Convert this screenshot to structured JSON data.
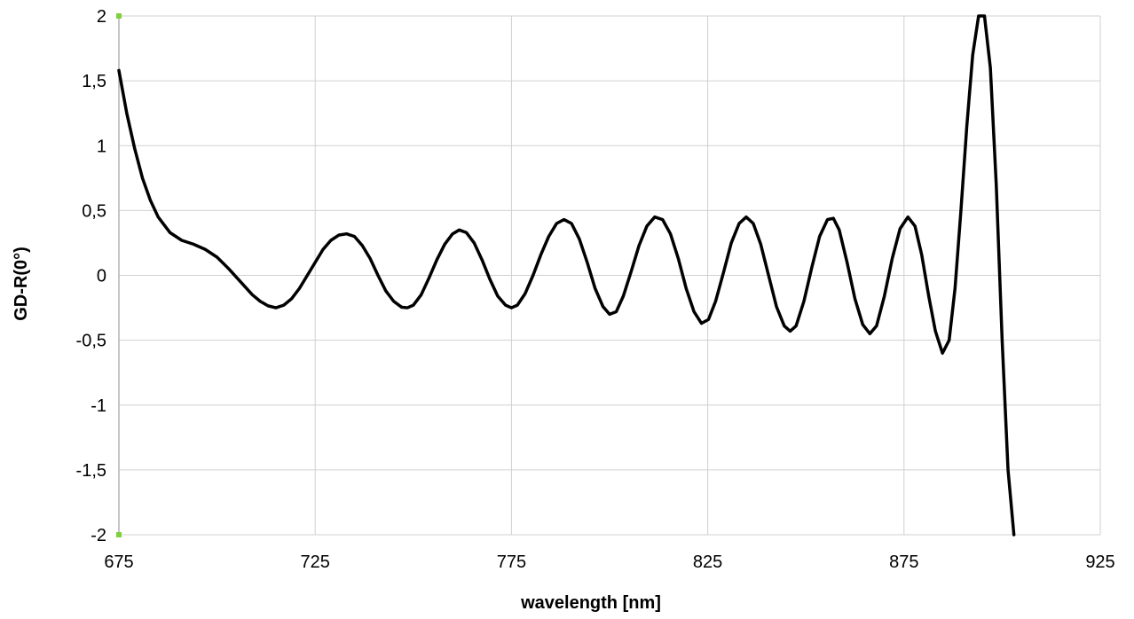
{
  "chart_data": {
    "type": "line",
    "xlabel": "wavelength [nm]",
    "ylabel": "GD-R(0°)",
    "xlim": [
      675,
      925
    ],
    "ylim": [
      -2,
      2
    ],
    "x_ticks": [
      675,
      725,
      775,
      825,
      875,
      925
    ],
    "x_tick_labels": [
      "675",
      "725",
      "775",
      "825",
      "875",
      "925"
    ],
    "y_ticks": [
      2,
      1.5,
      1,
      0.5,
      0,
      -0.5,
      -1,
      -1.5,
      -2
    ],
    "y_tick_labels": [
      "2",
      "1,5",
      "1",
      "0,5",
      "0",
      "-0,5",
      "-1",
      "-1,5",
      "-2"
    ],
    "grid": true,
    "legend": "none",
    "colors": {
      "line": "#000000",
      "grid": "#d0d0d0",
      "axis": "#b3b3b3",
      "marker": "#7fd13b"
    },
    "series": [
      {
        "values": [
          [
            675.0,
            1.58
          ],
          [
            677.0,
            1.25
          ],
          [
            679.0,
            0.98
          ],
          [
            681.0,
            0.75
          ],
          [
            683.0,
            0.58
          ],
          [
            685.0,
            0.45
          ],
          [
            688.0,
            0.33
          ],
          [
            691.0,
            0.27
          ],
          [
            694.0,
            0.24
          ],
          [
            697.0,
            0.2
          ],
          [
            700.0,
            0.14
          ],
          [
            703.0,
            0.05
          ],
          [
            706.0,
            -0.05
          ],
          [
            709.0,
            -0.15
          ],
          [
            711.0,
            -0.2
          ],
          [
            713.0,
            -0.235
          ],
          [
            715.0,
            -0.25
          ],
          [
            717.0,
            -0.23
          ],
          [
            719.0,
            -0.18
          ],
          [
            721.0,
            -0.1
          ],
          [
            723.0,
            0.0
          ],
          [
            725.0,
            0.1
          ],
          [
            727.0,
            0.2
          ],
          [
            729.0,
            0.27
          ],
          [
            731.0,
            0.31
          ],
          [
            733.0,
            0.32
          ],
          [
            735.0,
            0.3
          ],
          [
            737.0,
            0.23
          ],
          [
            739.0,
            0.13
          ],
          [
            741.0,
            0.0
          ],
          [
            743.0,
            -0.12
          ],
          [
            745.0,
            -0.2
          ],
          [
            747.0,
            -0.245
          ],
          [
            748.5,
            -0.25
          ],
          [
            750.0,
            -0.23
          ],
          [
            752.0,
            -0.15
          ],
          [
            754.0,
            -0.02
          ],
          [
            756.0,
            0.12
          ],
          [
            758.0,
            0.24
          ],
          [
            760.0,
            0.32
          ],
          [
            761.7,
            0.35
          ],
          [
            763.5,
            0.33
          ],
          [
            765.5,
            0.25
          ],
          [
            767.5,
            0.12
          ],
          [
            769.5,
            -0.03
          ],
          [
            771.5,
            -0.16
          ],
          [
            773.5,
            -0.23
          ],
          [
            775.0,
            -0.25
          ],
          [
            776.5,
            -0.23
          ],
          [
            778.5,
            -0.14
          ],
          [
            780.5,
            0.0
          ],
          [
            782.5,
            0.16
          ],
          [
            784.5,
            0.3
          ],
          [
            786.5,
            0.4
          ],
          [
            788.4,
            0.43
          ],
          [
            790.3,
            0.4
          ],
          [
            792.3,
            0.28
          ],
          [
            794.3,
            0.1
          ],
          [
            796.3,
            -0.1
          ],
          [
            798.3,
            -0.24
          ],
          [
            800.0,
            -0.3
          ],
          [
            801.7,
            -0.28
          ],
          [
            803.5,
            -0.16
          ],
          [
            805.5,
            0.03
          ],
          [
            807.5,
            0.23
          ],
          [
            809.5,
            0.38
          ],
          [
            811.5,
            0.45
          ],
          [
            813.5,
            0.43
          ],
          [
            815.5,
            0.32
          ],
          [
            817.5,
            0.13
          ],
          [
            819.5,
            -0.1
          ],
          [
            821.5,
            -0.28
          ],
          [
            823.4,
            -0.37
          ],
          [
            825.2,
            -0.34
          ],
          [
            827.0,
            -0.2
          ],
          [
            829.0,
            0.02
          ],
          [
            831.0,
            0.25
          ],
          [
            833.0,
            0.4
          ],
          [
            834.8,
            0.45
          ],
          [
            836.6,
            0.4
          ],
          [
            838.5,
            0.24
          ],
          [
            840.5,
            0.0
          ],
          [
            842.5,
            -0.24
          ],
          [
            844.5,
            -0.39
          ],
          [
            846.0,
            -0.43
          ],
          [
            847.5,
            -0.39
          ],
          [
            849.5,
            -0.2
          ],
          [
            851.5,
            0.06
          ],
          [
            853.5,
            0.3
          ],
          [
            855.5,
            0.43
          ],
          [
            857.0,
            0.44
          ],
          [
            858.5,
            0.35
          ],
          [
            860.5,
            0.1
          ],
          [
            862.5,
            -0.18
          ],
          [
            864.5,
            -0.38
          ],
          [
            866.3,
            -0.45
          ],
          [
            868.0,
            -0.39
          ],
          [
            870.0,
            -0.16
          ],
          [
            872.0,
            0.13
          ],
          [
            874.0,
            0.36
          ],
          [
            876.0,
            0.45
          ],
          [
            877.8,
            0.38
          ],
          [
            879.5,
            0.16
          ],
          [
            881.3,
            -0.16
          ],
          [
            883.0,
            -0.43
          ],
          [
            884.8,
            -0.6
          ],
          [
            886.5,
            -0.5
          ],
          [
            888.0,
            -0.1
          ],
          [
            889.5,
            0.5
          ],
          [
            891.0,
            1.15
          ],
          [
            892.5,
            1.7
          ],
          [
            894.0,
            2.0
          ],
          [
            895.5,
            2.0
          ],
          [
            897.0,
            1.6
          ],
          [
            898.5,
            0.7
          ],
          [
            900.0,
            -0.5
          ],
          [
            901.5,
            -1.5
          ],
          [
            903.0,
            -2.0
          ]
        ]
      }
    ]
  }
}
